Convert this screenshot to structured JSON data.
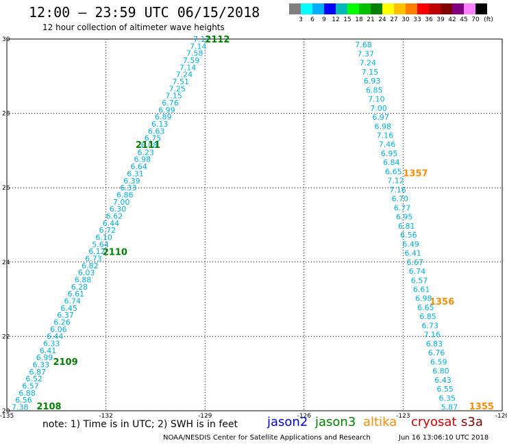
{
  "title": "12:00 – 23:59 UTC 06/15/2018",
  "subtitle": "12 hour collection of altimeter wave heights",
  "scale": {
    "unit": "(ft)",
    "labels": [
      "3",
      "6",
      "9",
      "12",
      "15",
      "18",
      "21",
      "24",
      "27",
      "30",
      "33",
      "36",
      "39",
      "42",
      "45",
      "70"
    ],
    "colors": [
      "#808080",
      "#00ffff",
      "#00b0ff",
      "#0000ff",
      "#00b8b8",
      "#00ff00",
      "#00c000",
      "#008000",
      "#ffff00",
      "#ffc000",
      "#ff8000",
      "#ff0000",
      "#c00000",
      "#800000",
      "#800080",
      "#ff80ff",
      "#000000"
    ]
  },
  "axes": {
    "lon_ticks": [
      "-135",
      "-132",
      "-129",
      "-126",
      "-123",
      "-120"
    ],
    "lat_ticks": [
      "30",
      "28",
      "26",
      "24",
      "22",
      "20"
    ]
  },
  "chart_data": {
    "type": "scatter",
    "xlim": [
      -135,
      -120
    ],
    "ylim": [
      20,
      30
    ],
    "label_color": "#00b0e0",
    "tracks": [
      {
        "values": [
          "7.38",
          "6.56",
          "6.88",
          "6.57",
          "6.52",
          "6.87",
          "6.33",
          "6.99",
          "6.41",
          "6.33",
          "6.44",
          "6.06",
          "6.26",
          "6.37",
          "6.45",
          "6.74",
          "6.61",
          "6.28",
          "6.88",
          "6.03",
          "6.82",
          "6.73",
          "6.12",
          "5.64",
          "6.10",
          "6.72",
          "6.44",
          "6.62",
          "6.30",
          "7.00",
          "6.86",
          "6.33",
          "6.39",
          "6.31",
          "6.64",
          "6.98",
          "6.23",
          "6.08",
          "6.75",
          "6.63",
          "6.13",
          "6.89",
          "6.99",
          "6.76",
          "7.15",
          "7.25",
          "7.51",
          "7.24",
          "7.14",
          "7.59",
          "7.58",
          "7.14",
          "7.11"
        ],
        "lon_start": -134.6,
        "lat_start": 20.1,
        "lon_end": -129.1,
        "lat_end": 30.0
      },
      {
        "values": [
          "7.68",
          "7.37",
          "7.24",
          "7.15",
          "6.93",
          "6.85",
          "7.10",
          "7.00",
          "6.97",
          "6.98",
          "7.16",
          "7.46",
          "6.95",
          "6.84",
          "6.65",
          "7.12",
          "7.16",
          "6.70",
          "6.77",
          "6.95",
          "6.81",
          "6.56",
          "6.49",
          "6.41",
          "6.67",
          "6.74",
          "6.57",
          "6.61",
          "6.98",
          "6.65",
          "6.85",
          "6.73",
          "7.16",
          "6.83",
          "6.76",
          "6.59",
          "6.80",
          "6.43",
          "6.55",
          "6.35",
          "5.87"
        ],
        "lon_start": -124.2,
        "lat_start": 29.85,
        "lon_end": -121.6,
        "lat_end": 20.1
      }
    ],
    "annotations": [
      {
        "text": "2112",
        "lon": -129.0,
        "lat": 30.0,
        "color": "#008000"
      },
      {
        "text": "2111",
        "lon": -131.1,
        "lat": 27.16,
        "color": "#008000"
      },
      {
        "text": "2110",
        "lon": -132.1,
        "lat": 24.28,
        "color": "#008000"
      },
      {
        "text": "2109",
        "lon": -133.6,
        "lat": 21.33,
        "color": "#008000"
      },
      {
        "text": "2108",
        "lon": -134.1,
        "lat": 20.13,
        "color": "#008000"
      },
      {
        "text": "1357",
        "lon": -123.0,
        "lat": 26.4,
        "color": "#ff8c00"
      },
      {
        "text": "1356",
        "lon": -122.2,
        "lat": 22.95,
        "color": "#ff8c00"
      },
      {
        "text": "1355",
        "lon": -121.0,
        "lat": 20.13,
        "color": "#ff8c00"
      }
    ]
  },
  "note": "note: 1) Time is in UTC; 2) SWH is in feet",
  "legend": [
    {
      "text": "jason2",
      "color": "#0000cc"
    },
    {
      "text": "jason3",
      "color": "#008000"
    },
    {
      "text": "altika",
      "color": "#ff8c00"
    },
    {
      "text": "cryosat",
      "color": "#cc0000"
    },
    {
      "text": "s3a",
      "color": "#800000"
    }
  ],
  "footer": "NOAA/NESDIS Center for Satellite Applications and Research",
  "footer_time": "Jun 16 13:06:10 UTC 2018"
}
